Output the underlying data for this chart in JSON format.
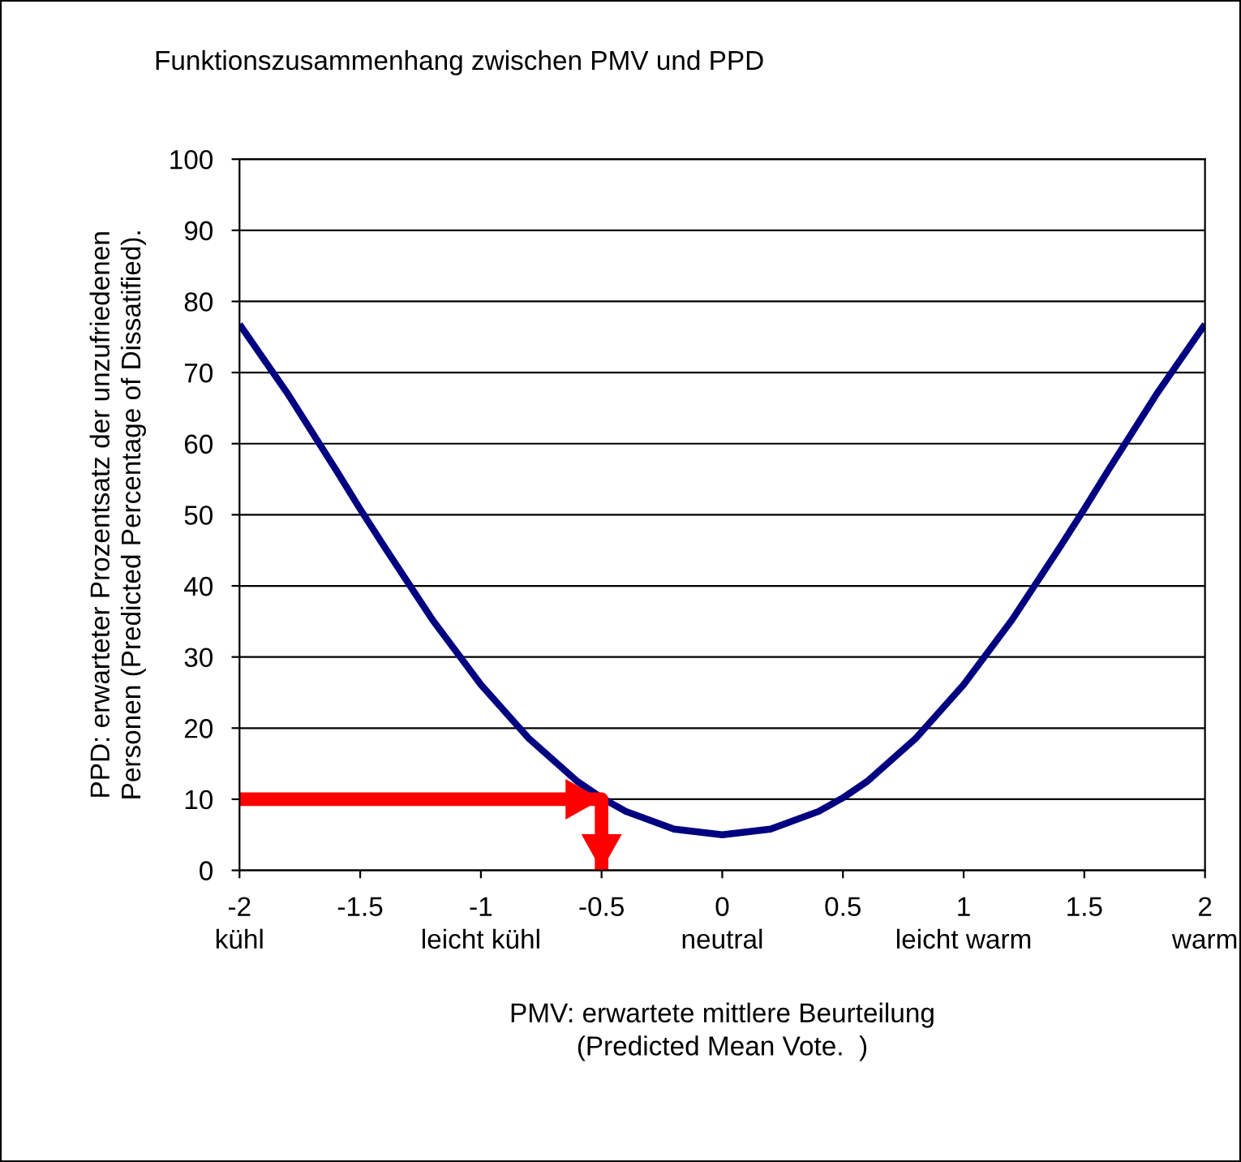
{
  "chart_data": {
    "type": "line",
    "title": "Funktionszusammenhang zwischen PMV und PPD",
    "xlabel": "PMV: erwartete mittlere Beurteilung\n(Predicted Mean Vote.  )",
    "ylabel": "PPD: erwarteter Prozentsatz der unzufriedenen\nPersonen (Predicted Percentage of Dissatified).",
    "series": [
      {
        "color": "#000080",
        "x": [
          -2,
          -1.8,
          -1.6,
          -1.5,
          -1.4,
          -1.2,
          -1,
          -0.8,
          -0.6,
          -0.5,
          -0.4,
          -0.2,
          0,
          0.2,
          0.4,
          0.5,
          0.6,
          0.8,
          1,
          1.2,
          1.4,
          1.5,
          1.6,
          1.8,
          2
        ],
        "values": [
          76.8,
          67.0,
          56.3,
          50.8,
          45.5,
          35.2,
          26.1,
          18.5,
          12.5,
          10.2,
          8.3,
          5.8,
          5.0,
          5.8,
          8.3,
          10.2,
          12.5,
          18.5,
          26.1,
          35.2,
          45.5,
          50.8,
          56.3,
          67.0,
          76.8
        ]
      },
      {
        "color": "#ff0000",
        "x": [
          -2,
          -0.5,
          -0.5
        ],
        "values": [
          10,
          10,
          0
        ]
      }
    ],
    "xlim": [
      -2,
      2
    ],
    "xticks": [
      -2,
      -1.5,
      -1,
      -0.5,
      0,
      0.5,
      1,
      1.5,
      2
    ],
    "annotations": [
      "kühl",
      "leicht kühl",
      "neutral",
      "leicht warm",
      "warm"
    ],
    "ylim": [
      0,
      100
    ],
    "yticks": [
      0,
      10,
      20,
      30,
      40,
      50,
      60,
      70,
      80,
      90,
      100
    ],
    "grid": "y",
    "legend": false,
    "marker": "none",
    "line_style": "solid"
  }
}
